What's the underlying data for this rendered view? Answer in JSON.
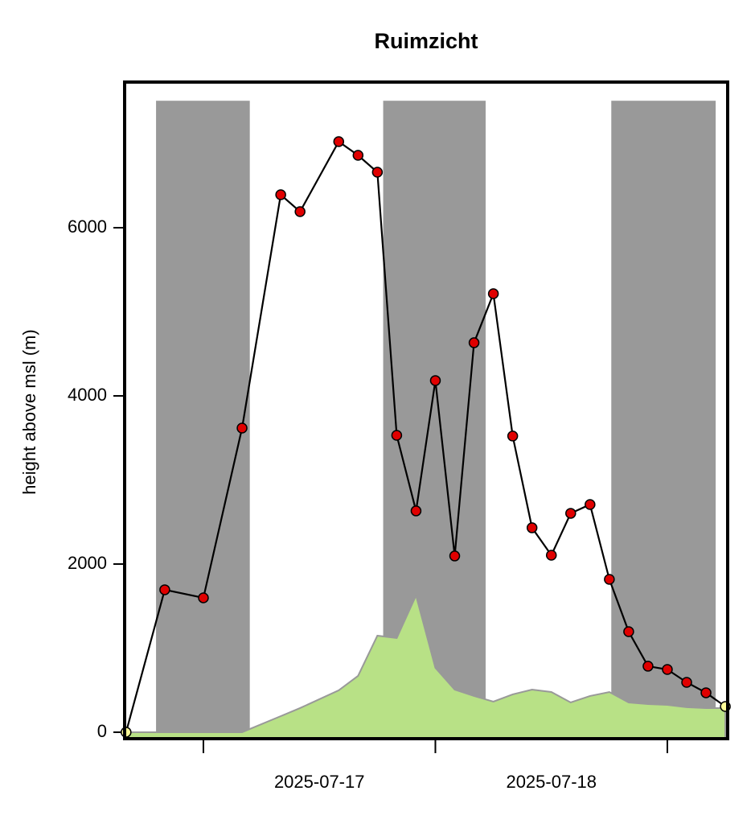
{
  "chart_data": {
    "type": "line",
    "title": "Ruimzicht",
    "y_label": "height above msl (m)",
    "x": [
      -8,
      -4,
      0,
      4,
      8,
      10,
      14,
      16,
      18,
      20,
      22,
      24,
      26,
      28,
      30,
      32,
      34,
      36,
      38,
      40,
      42,
      44,
      46,
      48,
      50,
      52,
      54
    ],
    "series": [
      {
        "color": "#000000",
        "marker_color": "#e00000",
        "endpoint_color": "#ffff99",
        "values": [
          0,
          1694,
          1598,
          3617,
          6392,
          6191,
          7024,
          6861,
          6660,
          3531,
          2632,
          4182,
          2096,
          4632,
          5215,
          3522,
          2431,
          2105,
          2603,
          2708,
          1818,
          1196,
          785,
          746,
          593,
          469,
          306
        ]
      }
    ],
    "ground": {
      "color": "#b8e186",
      "edge": "#999999",
      "sea_color": "#c6dbe8",
      "values": [
        0,
        0,
        0,
        0,
        191,
        287,
        498,
        670,
        1148,
        1120,
        1627,
        766,
        507,
        431,
        364,
        450,
        507,
        478,
        354,
        431,
        478,
        354,
        335,
        325,
        297,
        287,
        287
      ]
    },
    "night": {
      "color": "#999999",
      "top": 7510,
      "ranges": [
        [
          -4.9,
          4.8
        ],
        [
          18.6,
          29.2
        ],
        [
          42.2,
          53.0
        ]
      ]
    },
    "xlim": [
      -8.15,
      54.24
    ],
    "ylim": [
      -77,
      7732
    ],
    "x_tick_marks": [
      0,
      24,
      48
    ],
    "xticks": [
      {
        "value": 12,
        "label": "2025-07-17"
      },
      {
        "value": 36,
        "label": "2025-07-18"
      }
    ],
    "yticks": [
      0,
      2000,
      4000,
      6000
    ]
  }
}
